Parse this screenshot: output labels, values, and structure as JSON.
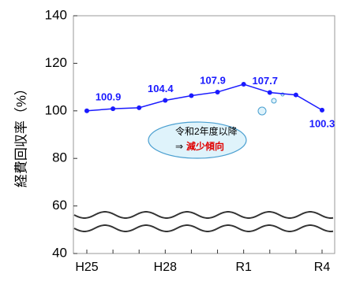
{
  "chart_data": {
    "type": "line",
    "y_label": "経費回収率（%）",
    "categories": [
      "H25",
      null,
      null,
      "H28",
      null,
      null,
      "R1",
      null,
      null,
      "R4"
    ],
    "values": [
      100.0,
      100.9,
      101.3,
      104.4,
      106.4,
      107.9,
      111.2,
      107.7,
      106.7,
      100.3
    ],
    "value_labels": [
      null,
      "100.9",
      null,
      "104.4",
      null,
      "107.9",
      null,
      "107.7",
      null,
      "100.3"
    ],
    "color": "#1a1aff",
    "ylim": [
      40,
      140
    ],
    "yticks": [
      40,
      60,
      80,
      100,
      120,
      140
    ],
    "annotation": {
      "line1": "令和2年度以降",
      "arrow": "⇒",
      "emphasis": "減少傾向"
    }
  }
}
